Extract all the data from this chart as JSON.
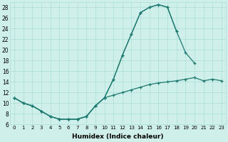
{
  "xlabel": "Humidex (Indice chaleur)",
  "xlim": [
    -0.5,
    23.5
  ],
  "ylim": [
    6,
    29
  ],
  "yticks": [
    6,
    8,
    10,
    12,
    14,
    16,
    18,
    20,
    22,
    24,
    26,
    28
  ],
  "xticks": [
    0,
    1,
    2,
    3,
    4,
    5,
    6,
    7,
    8,
    9,
    10,
    11,
    12,
    13,
    14,
    15,
    16,
    17,
    18,
    19,
    20,
    21,
    22,
    23
  ],
  "bg_color": "#cff0ea",
  "grid_color": "#aaddd6",
  "line_color": "#1e7a70",
  "line1_x": [
    0,
    1,
    2,
    3,
    4,
    5,
    6,
    7,
    8,
    9,
    10,
    11,
    12,
    13,
    14,
    15,
    16,
    17,
    18
  ],
  "line1_y": [
    11,
    10,
    9.5,
    8.5,
    7.5,
    7.0,
    7.0,
    7.0,
    7.5,
    9.5,
    11,
    14.5,
    19,
    23,
    27,
    28,
    28.5,
    28,
    23.5
  ],
  "line2_x": [
    0,
    1,
    2,
    3,
    4,
    5,
    6,
    7,
    8,
    9,
    10,
    11,
    12,
    13,
    14,
    15,
    16,
    17,
    18,
    19,
    20
  ],
  "line2_y": [
    11,
    10,
    9.5,
    8.5,
    7.5,
    7.0,
    7.0,
    7.0,
    7.5,
    9.5,
    11,
    14.5,
    19,
    23,
    27,
    28,
    28.5,
    28,
    23.5,
    19.5,
    17.5
  ],
  "line3_x": [
    0,
    1,
    2,
    3,
    4,
    5,
    6,
    7,
    8,
    9,
    10,
    11,
    12,
    13,
    14,
    15,
    16,
    17,
    18,
    19,
    20,
    21,
    22,
    23
  ],
  "line3_y": [
    11,
    10,
    9.5,
    8.5,
    7.5,
    7.0,
    7.0,
    7.0,
    7.5,
    9.5,
    11,
    11.5,
    12.0,
    12.5,
    13.0,
    13.5,
    13.8,
    14.0,
    14.2,
    14.5,
    14.8,
    14.2,
    14.5,
    14.2
  ]
}
